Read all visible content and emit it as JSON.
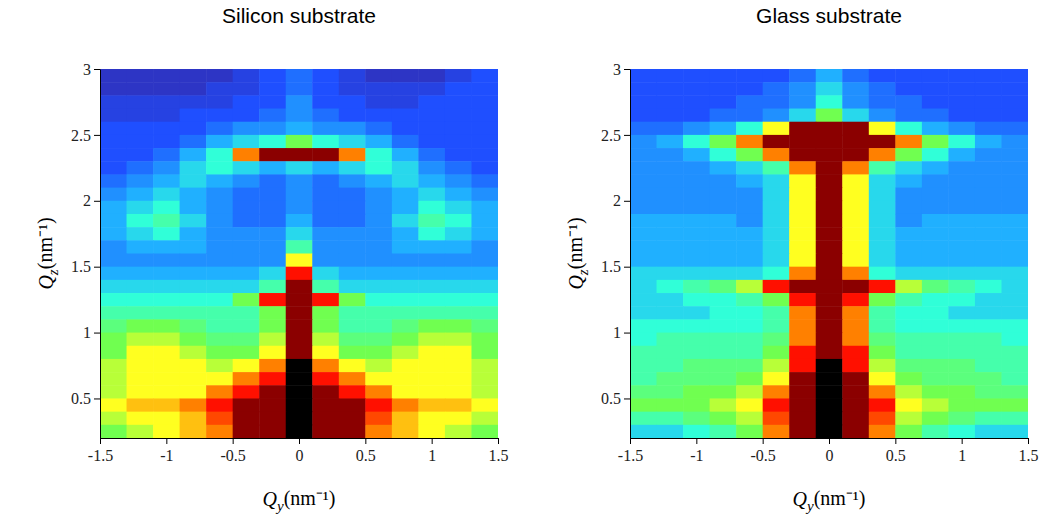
{
  "chart_data": [
    {
      "type": "heatmap",
      "title": "Silicon substrate",
      "xlabel": "Qy(nm⁻¹)",
      "ylabel": "Qz(nm⁻¹)",
      "xlim": [
        -1.5,
        1.5
      ],
      "ylim": [
        0.2,
        3
      ],
      "xticks": [
        -1.5,
        -1,
        -0.5,
        0,
        0.5,
        1,
        1.5
      ],
      "yticks": [
        0.5,
        1,
        1.5,
        2,
        2.5,
        3
      ],
      "zlim": [
        0,
        10
      ],
      "x_bins": [
        -1.5,
        -1.3,
        -1.1,
        -0.9,
        -0.7,
        -0.5,
        -0.3,
        -0.1,
        0.1,
        0.3,
        0.5,
        0.7,
        0.9,
        1.1,
        1.3,
        1.5
      ],
      "y_bins": [
        3.0,
        2.9,
        2.8,
        2.7,
        2.6,
        2.5,
        2.4,
        2.3,
        2.2,
        2.1,
        2.0,
        1.9,
        1.8,
        1.7,
        1.6,
        1.5,
        1.4,
        1.3,
        1.2,
        1.1,
        1.0,
        0.9,
        0.8,
        0.7,
        0.6,
        0.5,
        0.4,
        0.3,
        0.2
      ],
      "cells": [
        [
          1,
          1,
          1,
          1,
          1,
          1.5,
          2,
          2.5,
          2,
          1.5,
          1,
          1,
          1,
          1.5,
          2
        ],
        [
          1,
          1,
          1,
          1,
          1.5,
          1.5,
          2,
          2.5,
          2,
          1.5,
          1.5,
          1.5,
          1.5,
          2,
          2
        ],
        [
          1.5,
          1.5,
          1.5,
          1.5,
          1.5,
          2,
          2,
          3,
          2,
          2,
          1.5,
          1.5,
          2,
          2,
          2
        ],
        [
          1.5,
          1.5,
          1.5,
          2,
          2,
          2,
          2.5,
          3,
          2.5,
          2,
          2,
          2,
          2,
          2,
          2
        ],
        [
          2,
          2,
          2,
          2,
          2.5,
          3,
          3,
          3.5,
          3,
          3,
          2.5,
          2,
          2,
          2,
          2
        ],
        [
          2,
          2,
          2,
          2.5,
          3.5,
          4,
          4.5,
          6,
          4.5,
          4,
          3.5,
          2.5,
          2,
          2,
          2
        ],
        [
          2,
          2,
          2.5,
          3.5,
          4.5,
          8,
          10,
          10,
          10,
          8,
          4.5,
          3.5,
          2.5,
          2,
          2
        ],
        [
          2,
          2.5,
          3,
          4,
          4.5,
          4,
          3.5,
          4,
          3.5,
          4,
          4.5,
          4,
          3,
          2.5,
          2
        ],
        [
          2.5,
          3,
          3.5,
          4,
          3.5,
          3,
          2.5,
          3,
          2.5,
          3,
          3.5,
          4,
          3.5,
          3,
          2.5
        ],
        [
          3,
          3.5,
          4,
          3.5,
          3,
          2.5,
          2.5,
          3,
          2.5,
          2.5,
          3,
          3.5,
          4,
          3.5,
          3
        ],
        [
          3.5,
          4,
          4.5,
          3.5,
          3,
          2.5,
          2.5,
          3,
          2.5,
          2.5,
          3,
          3.5,
          4.5,
          4,
          3.5
        ],
        [
          3.5,
          4.5,
          5,
          4,
          3,
          2.5,
          2.5,
          3.5,
          2.5,
          2.5,
          3,
          4,
          5,
          4.5,
          3.5
        ],
        [
          3.5,
          4,
          4.5,
          3.5,
          3,
          3,
          3,
          4,
          3,
          3,
          3,
          3.5,
          4.5,
          4,
          3.5
        ],
        [
          3,
          3.5,
          3.5,
          3.5,
          3,
          3,
          3,
          5,
          3,
          3,
          3,
          3.5,
          3.5,
          3.5,
          3
        ],
        [
          3,
          3,
          3,
          3,
          3,
          3,
          3,
          7,
          3,
          3,
          3,
          3,
          3,
          3,
          3
        ],
        [
          3.5,
          3.5,
          3.5,
          3.5,
          3.5,
          3.5,
          4,
          9,
          4,
          3.5,
          3.5,
          3.5,
          3.5,
          3.5,
          3.5
        ],
        [
          4,
          4,
          4,
          4,
          4,
          4,
          5,
          10,
          5,
          4,
          4,
          4,
          4,
          4,
          4
        ],
        [
          4.5,
          4.5,
          4.5,
          4.5,
          4.5,
          6,
          9,
          10,
          9,
          6,
          4.5,
          4.5,
          4.5,
          4.5,
          4.5
        ],
        [
          5,
          5,
          5,
          5,
          5,
          5,
          6,
          10,
          6,
          5,
          5,
          5,
          5,
          5,
          5
        ],
        [
          5.5,
          6,
          6,
          5.5,
          5,
          5,
          6,
          10,
          6,
          5,
          5,
          5.5,
          6,
          6,
          5.5
        ],
        [
          6,
          6.5,
          6.5,
          6,
          5.5,
          5.5,
          6.5,
          10,
          6.5,
          5.5,
          5.5,
          6,
          6.5,
          6.5,
          6
        ],
        [
          6,
          7,
          7,
          6.5,
          6,
          6,
          7,
          10,
          7,
          6,
          6,
          6.5,
          7,
          7,
          6
        ],
        [
          6.5,
          7,
          7,
          7,
          6.5,
          7,
          8,
          null,
          8,
          7,
          6.5,
          7,
          7,
          7,
          6.5
        ],
        [
          6.5,
          7,
          7,
          7,
          7,
          8,
          9,
          null,
          9,
          8,
          7,
          7,
          7,
          7,
          6.5
        ],
        [
          6.5,
          7,
          7,
          7,
          8,
          9,
          10,
          null,
          10,
          9,
          8,
          7,
          7,
          7,
          6.5
        ],
        [
          7,
          7.5,
          7.5,
          8,
          9,
          10,
          10,
          null,
          10,
          10,
          9,
          8,
          7.5,
          7.5,
          7
        ],
        [
          6.5,
          7,
          7,
          7.5,
          8.5,
          10,
          10,
          null,
          10,
          10,
          8.5,
          7.5,
          7,
          7,
          6.5
        ],
        [
          6,
          6.5,
          7,
          7.5,
          8,
          10,
          10,
          null,
          10,
          10,
          8,
          7.5,
          7,
          6.5,
          6
        ]
      ]
    },
    {
      "type": "heatmap",
      "title": "Glass substrate",
      "xlabel": "Qy(nm⁻¹)",
      "ylabel": "Qz(nm⁻¹)",
      "xlim": [
        -1.5,
        1.5
      ],
      "ylim": [
        0.2,
        3
      ],
      "xticks": [
        -1.5,
        -1,
        -0.5,
        0,
        0.5,
        1,
        1.5
      ],
      "yticks": [
        0.5,
        1,
        1.5,
        2,
        2.5,
        3
      ],
      "zlim": [
        0,
        10
      ],
      "x_bins": [
        -1.5,
        -1.3,
        -1.1,
        -0.9,
        -0.7,
        -0.5,
        -0.3,
        -0.1,
        0.1,
        0.3,
        0.5,
        0.7,
        0.9,
        1.1,
        1.3,
        1.5
      ],
      "y_bins": [
        3.0,
        2.9,
        2.8,
        2.7,
        2.6,
        2.5,
        2.4,
        2.3,
        2.2,
        2.1,
        2.0,
        1.9,
        1.8,
        1.7,
        1.6,
        1.5,
        1.4,
        1.3,
        1.2,
        1.1,
        1.0,
        0.9,
        0.8,
        0.7,
        0.6,
        0.5,
        0.4,
        0.3,
        0.2
      ],
      "cells": [
        [
          2,
          2,
          2,
          2,
          2,
          2,
          2.5,
          3.5,
          2.5,
          2,
          2,
          2,
          2,
          2,
          2
        ],
        [
          2,
          2,
          2,
          2,
          2,
          2.5,
          3,
          4,
          3,
          2.5,
          2,
          2,
          2,
          2,
          2
        ],
        [
          2,
          2,
          2,
          2,
          2.5,
          2.5,
          3,
          4.5,
          3,
          2.5,
          2.5,
          2,
          2,
          2,
          2
        ],
        [
          2,
          2,
          2,
          2.5,
          2.5,
          3,
          4,
          6,
          4,
          3,
          2.5,
          2.5,
          2,
          2,
          2
        ],
        [
          2.5,
          2.5,
          3,
          3.5,
          4.5,
          7,
          10,
          10,
          10,
          7,
          4.5,
          3.5,
          3,
          2.5,
          2.5
        ],
        [
          3,
          3.5,
          4.5,
          6,
          8,
          10,
          10,
          10,
          10,
          10,
          8,
          6,
          4.5,
          3.5,
          3
        ],
        [
          3,
          3,
          3.5,
          4.5,
          6,
          8,
          10,
          10,
          10,
          8,
          6,
          4.5,
          3.5,
          3,
          3
        ],
        [
          3,
          3,
          3,
          3.5,
          4,
          5,
          8,
          10,
          8,
          5,
          4,
          3.5,
          3,
          3,
          3
        ],
        [
          3,
          3,
          3,
          3,
          3.5,
          4,
          7,
          10,
          7,
          4,
          3.5,
          3,
          3,
          3,
          3
        ],
        [
          3,
          3,
          3,
          3,
          3,
          4,
          7,
          10,
          7,
          4,
          3,
          3,
          3,
          3,
          3
        ],
        [
          3,
          3,
          3,
          3,
          3,
          4,
          7,
          10,
          7,
          4,
          3,
          3,
          3,
          3,
          3
        ],
        [
          3.5,
          3.5,
          3.5,
          3.5,
          3,
          4,
          7,
          10,
          7,
          4,
          3,
          3.5,
          3.5,
          3.5,
          3.5
        ],
        [
          3.5,
          3.5,
          3.5,
          3.5,
          3.5,
          4,
          7,
          10,
          7,
          4,
          3.5,
          3.5,
          3.5,
          3.5,
          3.5
        ],
        [
          3.5,
          3.5,
          3.5,
          3.5,
          3.5,
          4,
          7,
          10,
          7,
          4,
          3.5,
          3.5,
          3.5,
          3.5,
          3.5
        ],
        [
          3.5,
          3.5,
          3.5,
          3.5,
          3.5,
          4,
          7,
          10,
          7,
          4,
          3.5,
          3.5,
          3.5,
          3.5,
          3.5
        ],
        [
          4,
          4,
          4,
          4,
          4,
          4.5,
          8,
          10,
          8,
          4.5,
          4,
          4,
          4,
          4,
          4
        ],
        [
          4,
          4.5,
          5,
          5.5,
          6.5,
          9,
          10,
          10,
          10,
          9,
          6.5,
          5.5,
          5,
          4.5,
          4
        ],
        [
          4,
          4,
          4.5,
          4.5,
          5,
          6,
          9,
          10,
          9,
          6,
          5,
          4.5,
          4.5,
          4,
          4
        ],
        [
          4,
          4,
          4,
          4.5,
          4.5,
          5,
          8,
          10,
          8,
          5,
          4.5,
          4.5,
          4,
          4,
          4
        ],
        [
          4.5,
          4.5,
          4.5,
          4.5,
          4.5,
          5,
          8,
          10,
          8,
          5,
          4.5,
          4.5,
          4.5,
          4.5,
          4.5
        ],
        [
          4.5,
          5,
          5,
          5,
          5,
          5.5,
          8,
          10,
          8,
          5.5,
          5,
          5,
          5,
          5,
          4.5
        ],
        [
          5,
          5,
          5,
          5,
          5,
          6,
          9,
          10,
          9,
          6,
          5,
          5,
          5,
          5,
          5
        ],
        [
          5,
          5,
          5.5,
          5.5,
          5.5,
          6.5,
          9,
          null,
          9,
          6.5,
          5.5,
          5.5,
          5.5,
          5,
          5
        ],
        [
          5,
          5.5,
          5.5,
          5.5,
          6,
          7,
          10,
          null,
          10,
          7,
          6,
          5.5,
          5.5,
          5.5,
          5
        ],
        [
          5.5,
          5.5,
          6,
          6,
          6.5,
          8,
          10,
          null,
          10,
          8,
          6.5,
          6,
          6,
          5.5,
          5.5
        ],
        [
          6,
          6,
          6,
          6.5,
          7,
          9,
          10,
          null,
          10,
          9,
          7,
          6.5,
          6,
          6,
          6
        ],
        [
          5,
          5,
          5.5,
          6,
          6.5,
          8.5,
          10,
          null,
          10,
          8.5,
          6.5,
          6,
          5.5,
          5,
          5
        ],
        [
          4,
          4,
          4.5,
          5,
          6,
          8,
          10,
          null,
          10,
          8,
          6,
          5,
          4.5,
          4,
          4
        ]
      ]
    }
  ]
}
